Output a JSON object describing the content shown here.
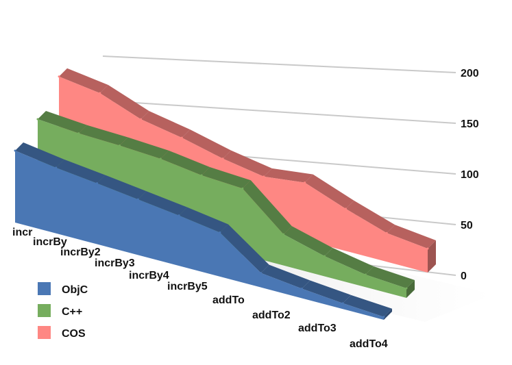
{
  "chart_data": {
    "type": "area",
    "style": "3d-stacked-depth",
    "categories": [
      "incr",
      "incrBy",
      "incrBy2",
      "incrBy3",
      "incrBy4",
      "incrBy5",
      "addTo",
      "addTo2",
      "addTo3",
      "addTo4"
    ],
    "series": [
      {
        "name": "ObjC",
        "color": "#4a77b4",
        "values": [
          150,
          137,
          127,
          116,
          105,
          92,
          30,
          20,
          12,
          6
        ]
      },
      {
        "name": "C++",
        "color": "#76ad5e",
        "values": [
          170,
          163,
          160,
          155,
          143,
          138,
          65,
          42,
          26,
          20
        ]
      },
      {
        "name": "COS",
        "color": "#fe8783",
        "values": [
          206,
          194,
          162,
          146,
          125,
          110,
          120,
          88,
          60,
          50
        ]
      }
    ],
    "y_ticks": [
      0,
      50,
      100,
      150,
      200
    ],
    "ylim": [
      0,
      220
    ],
    "grid": true,
    "legend_position": "bottom-left"
  }
}
